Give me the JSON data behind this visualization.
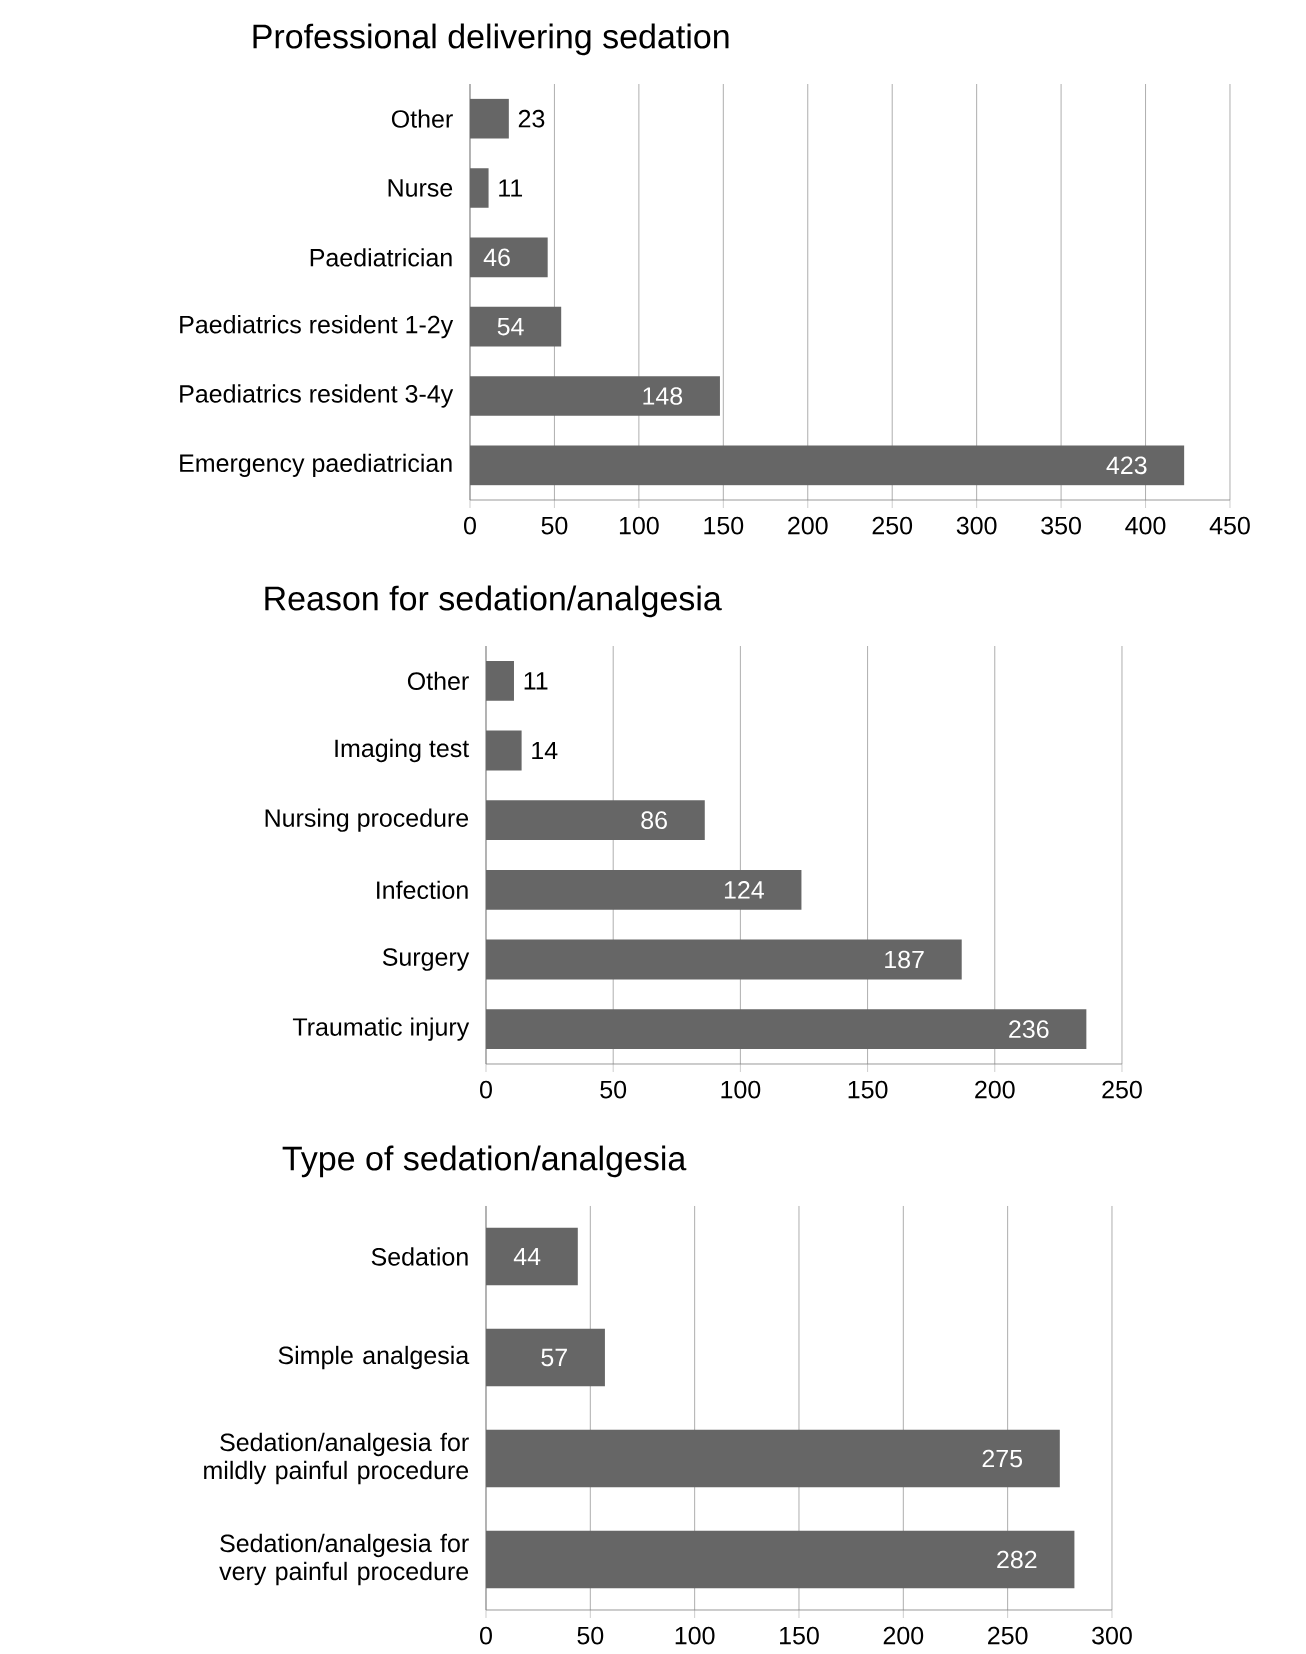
{
  "chart_data": [
    {
      "type": "bar",
      "orientation": "horizontal",
      "title": "Professional delivering sedation",
      "categories": [
        "Other",
        "Nurse",
        "Paediatrician",
        "Paediatrics resident 1-2y",
        "Paediatrics resident 3-4y",
        "Emergency paediatrician"
      ],
      "values": [
        23,
        11,
        46,
        54,
        148,
        423
      ],
      "color": "#666666",
      "xlim": [
        0,
        450
      ],
      "xticks": [
        0,
        50,
        100,
        150,
        200,
        250,
        300,
        350,
        400,
        450
      ],
      "grid": "x",
      "data_labels": true
    },
    {
      "type": "bar",
      "orientation": "horizontal",
      "title": "Reason for sedation/analgesia",
      "categories": [
        "Other",
        "Imaging test",
        "Nursing procedure",
        "Infection",
        "Surgery",
        "Traumatic injury"
      ],
      "values": [
        11,
        14,
        86,
        124,
        187,
        236
      ],
      "color": "#666666",
      "xlim": [
        0,
        250
      ],
      "xticks": [
        0,
        50,
        100,
        150,
        200,
        250
      ],
      "grid": "x",
      "data_labels": true
    },
    {
      "type": "bar",
      "orientation": "horizontal",
      "title": "Type of sedation/analgesia",
      "categories": [
        "Sedation",
        "Simple analgesia",
        "Sedation/analgesia for mildly painful procedure",
        "Sedation/analgesia for very painful procedure"
      ],
      "values": [
        44,
        57,
        275,
        282
      ],
      "color": "#666666",
      "xlim": [
        0,
        300
      ],
      "xticks": [
        0,
        50,
        100,
        150,
        200,
        250,
        300
      ],
      "grid": "x",
      "data_labels": true
    }
  ]
}
